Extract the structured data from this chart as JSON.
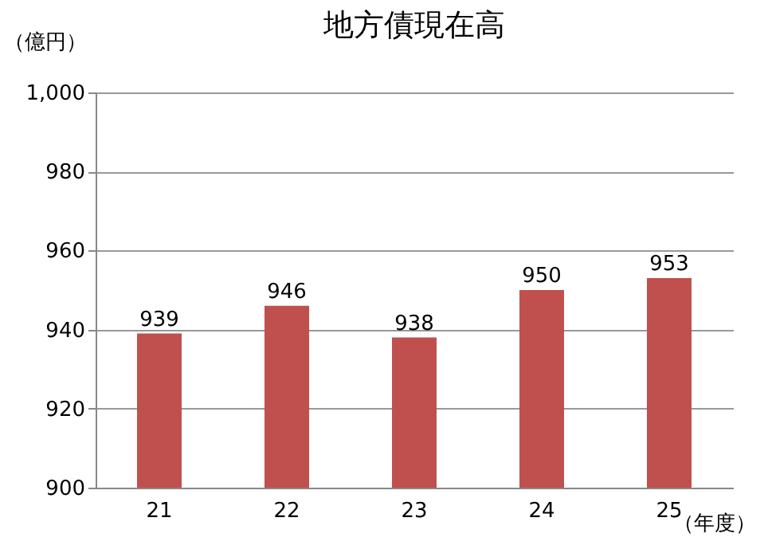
{
  "chart_data": {
    "type": "bar",
    "title": "地方債現在高",
    "xlabel": "（年度）",
    "ylabel": "（億円）",
    "categories": [
      "21",
      "22",
      "23",
      "24",
      "25"
    ],
    "series": [
      {
        "color": "#c0504d",
        "values": [
          939,
          946,
          938,
          950,
          953
        ]
      }
    ],
    "ylim": [
      900,
      1000
    ],
    "yticks": [
      900,
      920,
      940,
      960,
      980,
      {
        "value": 1000,
        "label": "1,000"
      }
    ],
    "grid": "y",
    "data_labels": true
  }
}
